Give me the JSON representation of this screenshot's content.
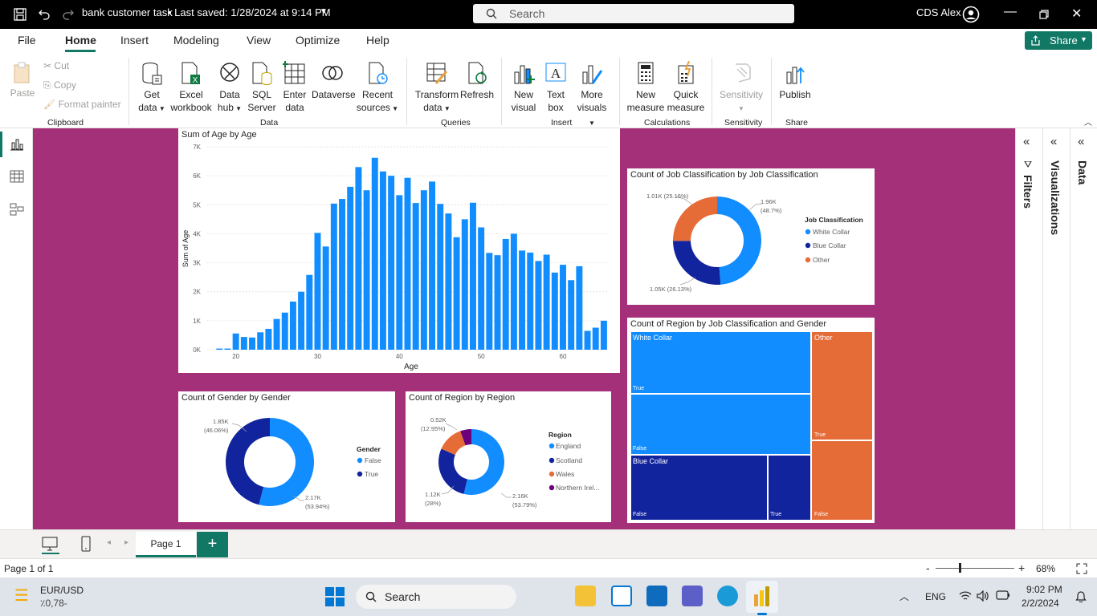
{
  "titlebar": {
    "file_title": "bank customer task",
    "saved": "•  Last saved: 1/28/2024 at 9:14 PM",
    "search_placeholder": "Search",
    "user": "CDS Alex"
  },
  "menu": {
    "items": [
      "File",
      "Home",
      "Insert",
      "Modeling",
      "View",
      "Optimize",
      "Help"
    ],
    "share": "Share"
  },
  "ribbon": {
    "clipboard": {
      "paste": "Paste",
      "cut": "Cut",
      "copy": "Copy",
      "format_painter": "Format painter",
      "group": "Clipboard"
    },
    "data": {
      "get_data": [
        "Get",
        "data"
      ],
      "excel": [
        "Excel",
        "workbook"
      ],
      "data_hub": [
        "Data",
        "hub"
      ],
      "sql": [
        "SQL",
        "Server"
      ],
      "enter_data": [
        "Enter",
        "data"
      ],
      "dataverse": "Dataverse",
      "recent": [
        "Recent",
        "sources"
      ],
      "group": "Data"
    },
    "queries": {
      "transform": [
        "Transform",
        "data"
      ],
      "refresh": "Refresh",
      "group": "Queries"
    },
    "insert": {
      "new_visual": [
        "New",
        "visual"
      ],
      "text_box": [
        "Text",
        "box"
      ],
      "more_visuals": [
        "More",
        "visuals"
      ],
      "group": "Insert"
    },
    "calculations": {
      "new_measure": [
        "New",
        "measure"
      ],
      "quick_measure": [
        "Quick",
        "measure"
      ],
      "group": "Calculations"
    },
    "sensitivity": {
      "label": "Sensitivity",
      "group": "Sensitivity"
    },
    "share": {
      "publish": "Publish",
      "group": "Share"
    }
  },
  "colors": {
    "accent": "#117865",
    "canvas": "#a5307a",
    "bar": "#118dff",
    "dark_blue": "#12239e",
    "orange": "#e66c37",
    "purple": "#6b007b"
  },
  "charts": {
    "age": {
      "title": "Sum of Age by Age",
      "xlabel": "Age",
      "ylabel": "Sum of Age",
      "yticks": [
        "7K",
        "6K",
        "5K",
        "4K",
        "3K",
        "2K",
        "1K",
        "0K"
      ],
      "xticks": [
        "20",
        "30",
        "40",
        "50",
        "60"
      ]
    },
    "job": {
      "title": "Count of Job Classification by Job Classification",
      "legend_title": "Job Classification",
      "legend": [
        "White Collar",
        "Blue Collar",
        "Other"
      ],
      "labels": {
        "white": [
          "1.96K",
          "(48.7%)"
        ],
        "blue": [
          "1.05K (26.13%)"
        ],
        "other": [
          "1.01K (25.16%)"
        ]
      }
    },
    "gender": {
      "title": "Count of Gender by Gender",
      "legend_title": "Gender",
      "legend": [
        "False",
        "True"
      ],
      "labels": {
        "false": [
          "2.17K",
          "(53.94%)"
        ],
        "true": [
          "1.85K",
          "(46.06%)"
        ]
      }
    },
    "region": {
      "title": "Count of Region by Region",
      "legend_title": "Region",
      "legend": [
        "England",
        "Scotland",
        "Wales",
        "Northern Irel..."
      ],
      "labels": {
        "england": [
          "2.16K",
          "(53.79%)"
        ],
        "scotland": [
          "1.12K",
          "(28%)"
        ],
        "wales": [
          "0.52K",
          "(12.95%)"
        ]
      }
    },
    "treemap": {
      "title": "Count of Region by Job Classification and Gender",
      "groups": [
        "White Collar",
        "Blue Collar",
        "Other"
      ],
      "cells": [
        "True",
        "False",
        "False",
        "True",
        "True",
        "False"
      ]
    }
  },
  "chart_data": [
    {
      "type": "bar",
      "title": "Sum of Age by Age",
      "xlabel": "Age",
      "ylabel": "Sum of Age",
      "ylim": [
        0,
        7000
      ],
      "x": [
        18,
        19,
        20,
        21,
        22,
        23,
        24,
        25,
        26,
        27,
        28,
        29,
        30,
        31,
        32,
        33,
        34,
        35,
        36,
        37,
        38,
        39,
        40,
        41,
        42,
        43,
        44,
        45,
        46,
        47,
        48,
        49,
        50,
        51,
        52,
        53,
        54,
        55,
        56,
        57,
        58,
        59,
        60,
        61,
        62,
        63,
        64,
        65
      ],
      "values": [
        40,
        40,
        560,
        440,
        420,
        600,
        720,
        1060,
        1280,
        1660,
        2000,
        2580,
        4030,
        3560,
        5040,
        5200,
        5620,
        6300,
        5500,
        6620,
        6150,
        6000,
        5330,
        5930,
        5060,
        5500,
        5800,
        5030,
        4700,
        3880,
        4500,
        5070,
        4220,
        3340,
        3260,
        3820,
        4000,
        3420,
        3350,
        3060,
        3280,
        2660,
        2930,
        2400,
        2880,
        650,
        760,
        1000
      ]
    },
    {
      "type": "pie",
      "title": "Count of Job Classification by Job Classification",
      "categories": [
        "White Collar",
        "Blue Collar",
        "Other"
      ],
      "values": [
        1960,
        1050,
        1010
      ],
      "percent": [
        48.7,
        26.13,
        25.16
      ]
    },
    {
      "type": "pie",
      "title": "Count of Gender by Gender",
      "categories": [
        "False",
        "True"
      ],
      "values": [
        2170,
        1850
      ],
      "percent": [
        53.94,
        46.06
      ]
    },
    {
      "type": "pie",
      "title": "Count of Region by Region",
      "categories": [
        "England",
        "Scotland",
        "Wales",
        "Northern Irel..."
      ],
      "values": [
        2160,
        1120,
        520,
        220
      ],
      "percent": [
        53.79,
        28,
        12.95,
        5.26
      ]
    }
  ],
  "rpanes": {
    "filters": "Filters",
    "visualizations": "Visualizations",
    "data": "Data"
  },
  "pagebar": {
    "page": "Page 1",
    "add": "+"
  },
  "status": {
    "page_of": "Page 1 of 1",
    "zoom": "68%",
    "minus": "-",
    "plus": "+"
  },
  "taskbar": {
    "ticker": "EUR/USD",
    "ticker_val": "٪0,78-",
    "search": "Search",
    "lang": "ENG",
    "time": "9:02 PM",
    "date": "2/2/2024"
  }
}
